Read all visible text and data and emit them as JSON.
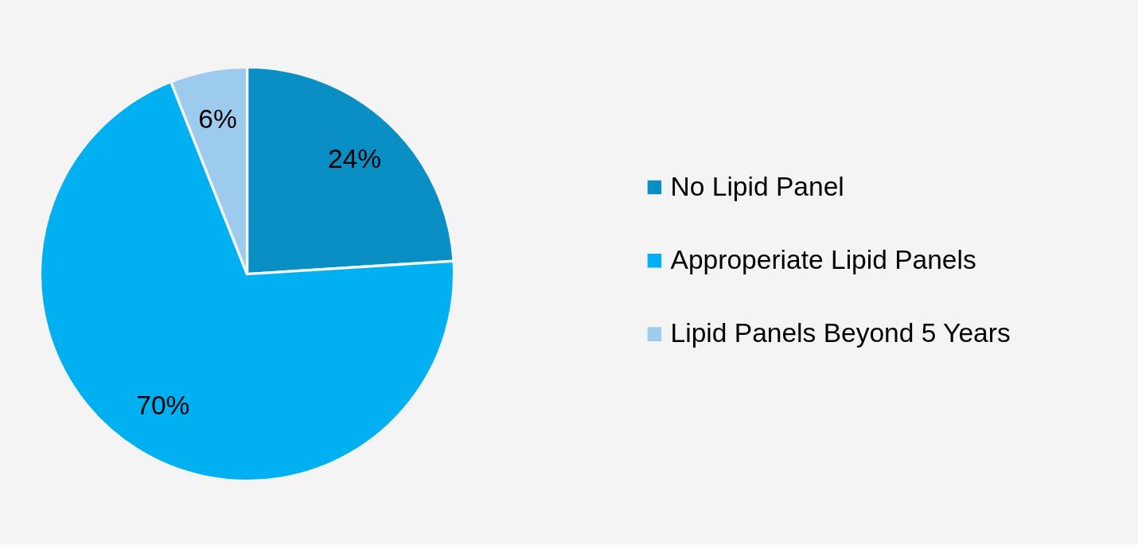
{
  "chart_data": {
    "type": "pie",
    "categories": [
      "No Lipid Panel",
      "Approperiate Lipid Panels",
      "Lipid Panels Beyond 5 Years"
    ],
    "values": [
      24,
      70,
      6
    ],
    "colors": [
      "#0a8fc4",
      "#00b0f0",
      "#9ccbee"
    ],
    "value_labels": [
      "24%",
      "70%",
      "6%"
    ],
    "legend": "right"
  }
}
